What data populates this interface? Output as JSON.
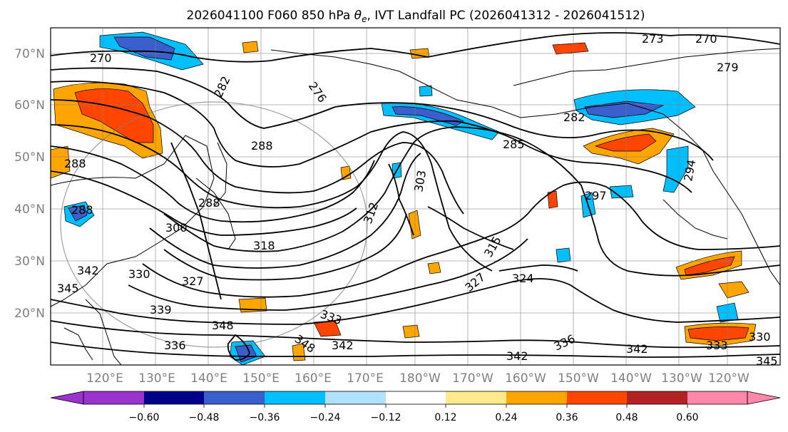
{
  "title": {
    "prefix": "2026041100 F060 850 hPa ",
    "symbol": "θ",
    "subscript": "e",
    "suffix": ", IVT Landfall PC (2026041312 - 2026041512)"
  },
  "lat_labels": [
    "70°N",
    "60°N",
    "50°N",
    "40°N",
    "30°N",
    "20°N"
  ],
  "lon_labels": [
    "120°E",
    "130°E",
    "140°E",
    "150°E",
    "160°E",
    "170°E",
    "180°W",
    "170°W",
    "160°W",
    "150°W",
    "140°W",
    "130°W",
    "120°W"
  ],
  "contour_labels": [
    "270",
    "273",
    "270",
    "276",
    "279",
    "282",
    "282",
    "288",
    "285",
    "288",
    "288",
    "288",
    "297",
    "294",
    "300",
    "303",
    "312",
    "315",
    "318",
    "324",
    "327",
    "327",
    "330",
    "333",
    "336",
    "342",
    "342",
    "342",
    "348",
    "348",
    "342",
    "345",
    "345",
    "339",
    "336",
    "333",
    "330"
  ],
  "colorbar": {
    "tick_labels": [
      "−0.60",
      "−0.48",
      "−0.36",
      "−0.24",
      "−0.12",
      "0.12",
      "0.24",
      "0.36",
      "0.48",
      "0.60"
    ],
    "colors": [
      "#9933cc",
      "#00008b",
      "#3a5fcd",
      "#00bfff",
      "#b0e2ff",
      "#ffffff",
      "#ffeb8c",
      "#ffa500",
      "#ff4500",
      "#b22222",
      "#ff88aa"
    ]
  },
  "colors": {
    "contour": "#000000",
    "grid": "#808080",
    "coast": "#000000",
    "positive_strong": "#ff4500",
    "positive": "#ffa500",
    "negative": "#00bfff",
    "negative_strong": "#3a5fcd"
  }
}
